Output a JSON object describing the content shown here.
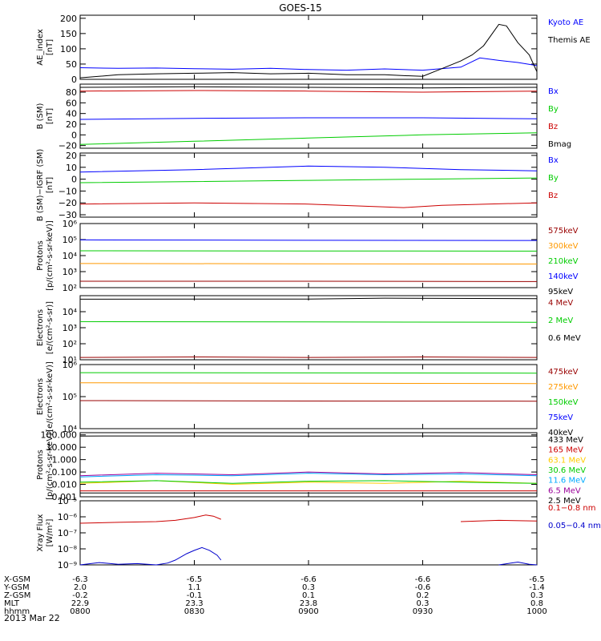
{
  "chart_data": {
    "type": "line",
    "title": "GOES-15",
    "date": "2013 Mar 22",
    "x": {
      "ticks": [
        "0800",
        "0830",
        "0900",
        "0930",
        "1000"
      ],
      "xlim": [
        "0800",
        "1000"
      ]
    },
    "ephemeris": [
      {
        "name": "X-GSM",
        "values": [
          "-6.3",
          "-6.5",
          "-6.6",
          "-6.6",
          "-6.5"
        ]
      },
      {
        "name": "Y-GSM",
        "values": [
          "2.0",
          "1.1",
          "0.3",
          "-0.6",
          "-1.4"
        ]
      },
      {
        "name": "Z-GSM",
        "values": [
          "-0.2",
          "-0.1",
          "0.1",
          "0.2",
          "0.3"
        ]
      },
      {
        "name": "MLT",
        "values": [
          "22.9",
          "23.3",
          "23.8",
          "0.3",
          "0.8"
        ]
      },
      {
        "name": "hhmm",
        "values": [
          "0800",
          "0830",
          "0900",
          "0930",
          "1000"
        ]
      }
    ],
    "panels": [
      {
        "ylabel": [
          "AE_index",
          "[nT]"
        ],
        "scale": "linear",
        "ylim": [
          0,
          210
        ],
        "yticks": [
          0,
          50,
          100,
          150,
          200
        ],
        "tick_labels": [
          "0",
          "50",
          "100",
          "150",
          "200"
        ],
        "series": [
          {
            "name": "Kyoto AE",
            "color": "#0000ff",
            "x": [
              0,
              10,
              20,
              30,
              40,
              50,
              60,
              70,
              80,
              90,
              100,
              105,
              110,
              115,
              120
            ],
            "y": [
              38,
              36,
              37,
              35,
              33,
              36,
              32,
              30,
              34,
              30,
              40,
              70,
              62,
              55,
              45
            ]
          },
          {
            "name": "Themis AE",
            "color": "#000000",
            "x": [
              0,
              10,
              20,
              30,
              40,
              50,
              60,
              70,
              80,
              85,
              90,
              95,
              100,
              103,
              106,
              110,
              112,
              115,
              118,
              120
            ],
            "y": [
              5,
              15,
              18,
              20,
              22,
              18,
              20,
              15,
              15,
              12,
              10,
              35,
              60,
              80,
              110,
              180,
              175,
              120,
              80,
              25
            ]
          }
        ]
      },
      {
        "ylabel": [
          "B (SM)",
          "[nT]"
        ],
        "scale": "linear",
        "ylim": [
          -25,
          95
        ],
        "yticks": [
          -20,
          0,
          20,
          40,
          60,
          80
        ],
        "tick_labels": [
          "−20",
          "0",
          "20",
          "40",
          "60",
          "80"
        ],
        "series": [
          {
            "name": "Bx",
            "color": "#0000ff",
            "x": [
              0,
              30,
              60,
              90,
              120
            ],
            "y": [
              29,
              31,
              32,
              32,
              30
            ]
          },
          {
            "name": "By",
            "color": "#00cc00",
            "x": [
              0,
              30,
              60,
              90,
              120
            ],
            "y": [
              -18,
              -12,
              -6,
              0,
              4
            ]
          },
          {
            "name": "Bz",
            "color": "#cc0000",
            "x": [
              0,
              30,
              60,
              90,
              120
            ],
            "y": [
              82,
              83,
              82,
              80,
              82
            ]
          },
          {
            "name": "Bmag",
            "color": "#000000",
            "x": [
              0,
              30,
              60,
              90,
              120
            ],
            "y": [
              89,
              90,
              89,
              88,
              89
            ]
          }
        ]
      },
      {
        "ylabel": [
          "B (SM)−IGRF (SM)",
          "[nT]"
        ],
        "scale": "linear",
        "ylim": [
          -32,
          22
        ],
        "yticks": [
          -30,
          -20,
          -10,
          0,
          10,
          20
        ],
        "tick_labels": [
          "−30",
          "−20",
          "−10",
          "0",
          "10",
          "20"
        ],
        "series": [
          {
            "name": "Bx",
            "color": "#0000ff",
            "x": [
              0,
              30,
              60,
              80,
              100,
              120
            ],
            "y": [
              6,
              8,
              11,
              10,
              8,
              7
            ]
          },
          {
            "name": "By",
            "color": "#00cc00",
            "x": [
              0,
              30,
              60,
              90,
              120
            ],
            "y": [
              -3,
              -2,
              -1,
              0,
              1
            ]
          },
          {
            "name": "Bz",
            "color": "#cc0000",
            "x": [
              0,
              30,
              60,
              85,
              95,
              120
            ],
            "y": [
              -21,
              -20,
              -21,
              -24,
              -22,
              -20
            ]
          }
        ]
      },
      {
        "ylabel": [
          "Protons",
          "[p/(cm²-s-sr-keV)]"
        ],
        "scale": "log",
        "ylim": [
          100,
          1000000
        ],
        "yticks": [
          100,
          1000,
          10000,
          100000,
          1000000
        ],
        "tick_labels": [
          "10²",
          "10³",
          "10⁴",
          "10⁵",
          "10⁶"
        ],
        "series": [
          {
            "name": "575keV",
            "color": "#990000",
            "x": [
              0,
              60,
              120
            ],
            "y": [
              250,
              250,
              240
            ]
          },
          {
            "name": "300keV",
            "color": "#ff9900",
            "x": [
              0,
              60,
              120
            ],
            "y": [
              3200,
              3100,
              3000
            ]
          },
          {
            "name": "210keV",
            "color": "#00cc00",
            "x": [
              0,
              60,
              120
            ],
            "y": [
              20000,
              19500,
              19000
            ]
          },
          {
            "name": "140keV",
            "color": "#0000ff",
            "x": [
              0,
              60,
              120
            ],
            "y": [
              95000,
              90000,
              88000
            ]
          },
          {
            "name": "95keV",
            "color": "#000000",
            "x": [
              0,
              60,
              120
            ],
            "y": [
              1000000,
              1000000,
              1000000
            ]
          }
        ]
      },
      {
        "ylabel": [
          "Electrons",
          "[e/(cm²-s-sr)]"
        ],
        "scale": "log",
        "ylim": [
          10,
          100000
        ],
        "yticks": [
          10,
          100,
          1000,
          10000
        ],
        "tick_labels": [
          "10¹",
          "10²",
          "10³",
          "10⁴"
        ],
        "series": [
          {
            "name": "4 MeV",
            "color": "#990000",
            "x": [
              0,
              30,
              60,
              90,
              120
            ],
            "y": [
              14,
              15,
              14,
              15,
              14
            ]
          },
          {
            "name": "2 MeV",
            "color": "#00cc00",
            "x": [
              0,
              60,
              120
            ],
            "y": [
              2400,
              2300,
              2200
            ]
          },
          {
            "name": "0.6 MeV",
            "color": "#000000",
            "x": [
              0,
              60,
              80,
              120
            ],
            "y": [
              60000,
              62000,
              70000,
              65000
            ]
          }
        ]
      },
      {
        "ylabel": [
          "Electrons",
          "[e/(cm²-s-sr-keV)]"
        ],
        "scale": "log",
        "ylim": [
          10000,
          1000000
        ],
        "yticks": [
          10000,
          100000,
          1000000
        ],
        "tick_labels": [
          "10⁴",
          "10⁵",
          "10⁶"
        ],
        "series": [
          {
            "name": "475keV",
            "color": "#990000",
            "x": [
              0,
              60,
              120
            ],
            "y": [
              75000,
              73000,
              72000
            ]
          },
          {
            "name": "275keV",
            "color": "#ff9900",
            "x": [
              0,
              60,
              120
            ],
            "y": [
              270000,
              262000,
              255000
            ]
          },
          {
            "name": "150keV",
            "color": "#00cc00",
            "x": [
              0,
              60,
              120
            ],
            "y": [
              560000,
              550000,
              540000
            ]
          },
          {
            "name": "75keV",
            "color": "#0000ff",
            "x": [
              0,
              60,
              120
            ],
            "y": [
              1000000,
              1000000,
              1000000
            ]
          },
          {
            "name": "40keV",
            "color": "#000000",
            "x": [
              0,
              60,
              120
            ],
            "y": [
              1000000,
              1000000,
              1000000
            ]
          }
        ]
      },
      {
        "ylabel": [
          "Protons",
          "[p/(cm²-s-sr-keV)]"
        ],
        "scale": "log",
        "ylim": [
          0.001,
          150
        ],
        "yticks": [
          0.001,
          0.01,
          0.1,
          1,
          10,
          100
        ],
        "tick_labels": [
          "0.001",
          "0.010",
          "0.100",
          "1.000",
          "10.000",
          "100.000"
        ],
        "series": [
          {
            "name": "433 MeV",
            "color": "#000000",
            "x": [
              0,
              30,
              60,
              90,
              120
            ],
            "y": [
              80,
              82,
              80,
              81,
              79
            ]
          },
          {
            "name": "165 MeV",
            "color": "#cc0000",
            "x": [
              0,
              30,
              60,
              90,
              120
            ],
            "y": [
              0.003,
              0.003,
              0.003,
              0.003,
              0.003
            ]
          },
          {
            "name": "63.1 MeV",
            "color": "#ffcc00",
            "x": [
              0,
              20,
              40,
              60,
              80,
              100,
              120
            ],
            "y": [
              0.012,
              0.02,
              0.01,
              0.015,
              0.012,
              0.018,
              0.012
            ]
          },
          {
            "name": "30.6 MeV",
            "color": "#00cc00",
            "x": [
              0,
              20,
              40,
              60,
              80,
              100,
              120
            ],
            "y": [
              0.015,
              0.02,
              0.012,
              0.018,
              0.02,
              0.015,
              0.012
            ]
          },
          {
            "name": "11.6 MeV",
            "color": "#00aaff",
            "x": [
              0,
              20,
              40,
              60,
              80,
              100,
              120
            ],
            "y": [
              0.04,
              0.06,
              0.05,
              0.08,
              0.06,
              0.07,
              0.05
            ]
          },
          {
            "name": "6.5 MeV",
            "color": "#990099",
            "x": [
              0,
              20,
              40,
              60,
              80,
              100,
              120
            ],
            "y": [
              0.05,
              0.08,
              0.06,
              0.1,
              0.07,
              0.09,
              0.06
            ]
          },
          {
            "name": "2.5 MeV",
            "color": "#000000",
            "x": [
              0,
              30,
              60,
              90,
              120
            ],
            "y": [
              0.002,
              0.002,
              0.002,
              0.002,
              0.002
            ]
          }
        ]
      },
      {
        "ylabel": [
          "Xray Flux",
          "[W/m²]"
        ],
        "scale": "log",
        "ylim": [
          1e-09,
          1e-05
        ],
        "yticks": [
          1e-09,
          1e-08,
          1e-07,
          1e-06,
          1e-05
        ],
        "tick_labels": [
          "10⁻⁹",
          "10⁻⁸",
          "10⁻⁷",
          "10⁻⁶",
          "10⁻⁵"
        ],
        "series": [
          {
            "name": "0.1−0.8 nm",
            "color": "#cc0000",
            "x": [
              0,
              10,
              20,
              25,
              30,
              33,
              35,
              37,
              null,
              100,
              110,
              120
            ],
            "y": [
              4e-07,
              4.5e-07,
              5e-07,
              6e-07,
              9e-07,
              1.3e-06,
              1.1e-06,
              7e-07,
              null,
              5e-07,
              6e-07,
              5.5e-07
            ]
          },
          {
            "name": "0.05−0.4 nm",
            "color": "#0000cc",
            "x": [
              0,
              5,
              10,
              15,
              20,
              23,
              25,
              28,
              30,
              32,
              34,
              36,
              37,
              null,
              110,
              115,
              118,
              120
            ],
            "y": [
              1e-09,
              1.4e-09,
              1.1e-09,
              1.2e-09,
              1e-09,
              1.3e-09,
              2e-09,
              5e-09,
              8e-09,
              1.2e-08,
              8e-09,
              4e-09,
              2e-09,
              null,
              1e-09,
              1.5e-09,
              1.1e-09,
              1e-09
            ]
          }
        ]
      }
    ]
  }
}
